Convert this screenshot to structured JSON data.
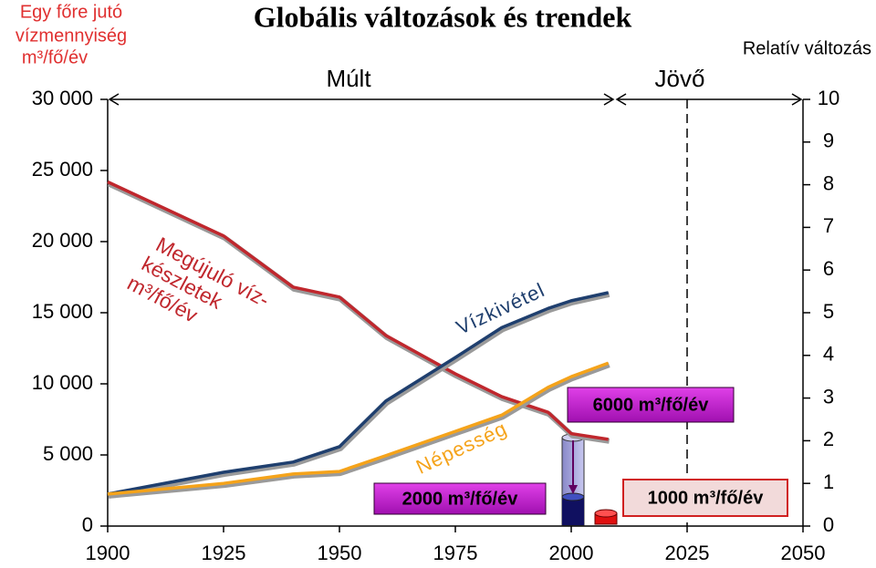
{
  "chart_data": {
    "type": "line",
    "title": "Globális változások és trendek",
    "ylabel": [
      "Egy főre jutó",
      "vízmennyiség",
      "m³/fő/év"
    ],
    "y2label": "Relatív változás",
    "x": [
      1900,
      1925,
      1940,
      1950,
      1960,
      1975,
      1985,
      1995,
      2000,
      2008
    ],
    "series": [
      {
        "name": "Megújuló víz-készletek m³/fő/év",
        "color": "#c0272d",
        "values": [
          24200,
          20400,
          16800,
          16100,
          13400,
          10700,
          9100,
          8000,
          6500,
          6100
        ]
      },
      {
        "name": "Vízkivétel",
        "color": "#1f3f6e",
        "axis": "y2",
        "values": [
          0.75,
          1.26,
          1.5,
          1.86,
          2.93,
          3.95,
          4.65,
          5.1,
          5.28,
          5.47
        ]
      },
      {
        "name": "Népesség",
        "color": "#f5a31a",
        "axis": "y2",
        "values": [
          0.75,
          1.0,
          1.22,
          1.28,
          1.65,
          2.22,
          2.6,
          3.25,
          3.5,
          3.82
        ]
      }
    ],
    "xlim": [
      1900,
      2050
    ],
    "xticks": [
      1900,
      1925,
      1950,
      1975,
      2000,
      2025,
      2050
    ],
    "ylim": [
      0,
      30000
    ],
    "yticks": [
      0,
      {
        "value": 5000,
        "label": "5 000"
      },
      {
        "value": 10000,
        "label": "10 000"
      },
      {
        "value": 15000,
        "label": "15 000"
      },
      {
        "value": 20000,
        "label": "20 000"
      },
      {
        "value": 25000,
        "label": "25 000"
      },
      {
        "value": 30000,
        "label": "30 000"
      }
    ],
    "y2lim": [
      0,
      10
    ],
    "y2ticks": [
      0,
      1,
      2,
      3,
      4,
      5,
      6,
      7,
      8,
      9,
      10
    ],
    "annotations": {
      "past": "Múlt",
      "future": "Jövő",
      "box_2000": "2000 m³/fő/év",
      "box_6000": "6000 m³/fő/év",
      "box_1000": "1000 m³/fő/év"
    }
  }
}
